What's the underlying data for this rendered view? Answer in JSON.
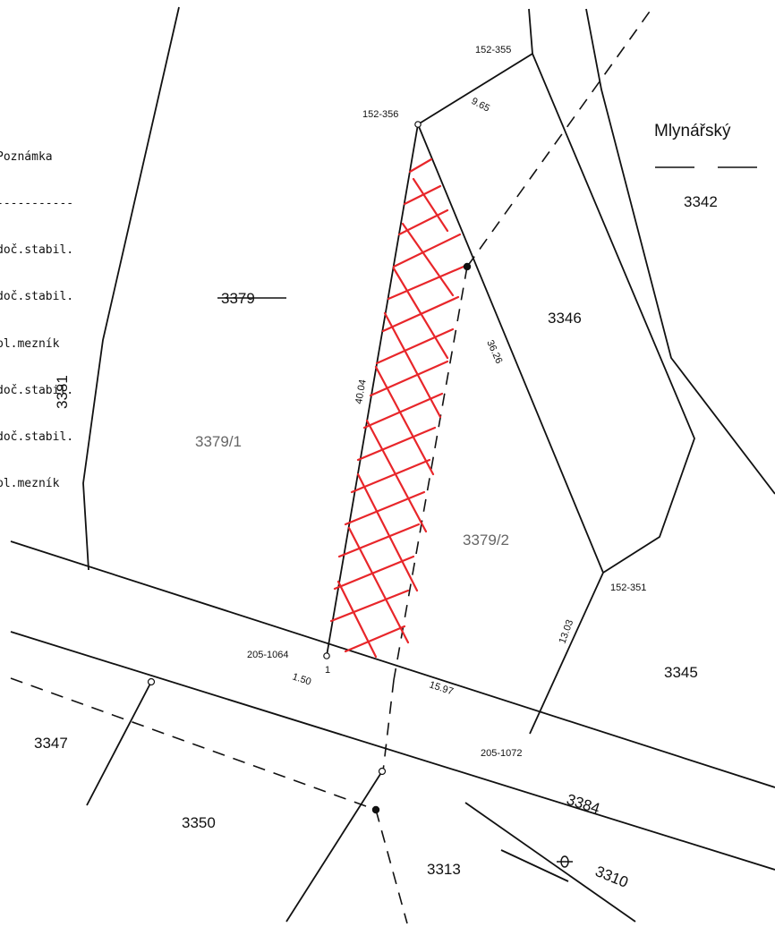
{
  "legend": {
    "title": "Poznámka",
    "separator": "-----------",
    "rows": [
      "doč.stabil.",
      "doč.stabil.",
      "pl.mezník",
      "doč.stabil.",
      "doč.stabil.",
      "pl.mezník"
    ]
  },
  "locality": {
    "name": "Mlynářský",
    "parcel": "3342"
  },
  "parcels": {
    "p3379": "3379",
    "p3379_1": "3379/1",
    "p3379_2": "3379/2",
    "p3381": "3381",
    "p3346": "3346",
    "p3345": "3345",
    "p3347": "3347",
    "p3350": "3350",
    "p3313": "3313",
    "p3384": "3384",
    "p3310": "3310"
  },
  "points": {
    "pt152_355": "152-355",
    "pt152_356": "152-356",
    "pt152_351": "152-351",
    "pt205_1064": "205-1064",
    "pt205_1072": "205-1072",
    "pt1": "1"
  },
  "measurements": {
    "m9_65": "9.65",
    "m40_04": "40.04",
    "m36_26": "36.26",
    "m13_03": "13.03",
    "m15_97": "15.97",
    "m1_50": "1.50"
  },
  "colors": {
    "line": "#111111",
    "hatch": "#e8262a",
    "label_grey": "#666666"
  }
}
